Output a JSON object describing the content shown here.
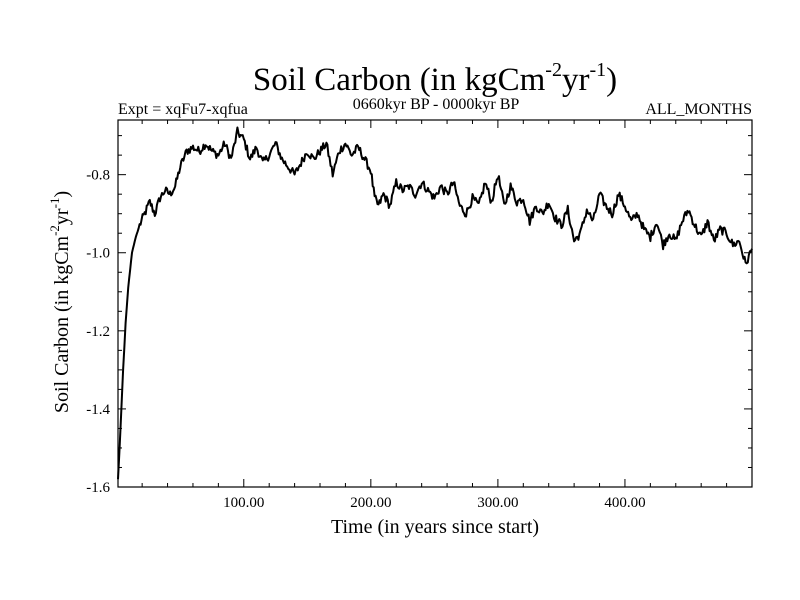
{
  "colors": {
    "line": "#000000",
    "background": "#ffffff",
    "frame": "#000000"
  },
  "chart_data": {
    "type": "line",
    "title_main": "Soil Carbon (in kgCm",
    "title_sup1": "-2",
    "title_mid": "yr",
    "title_sup2": "-1",
    "title_close": ")",
    "left_label": "Expt = xqFu7-xqfua",
    "center_label": "0660kyr BP - 0000kyr BP",
    "right_label": "ALL_MONTHS",
    "xlabel": "Time (in years since start)",
    "ylabel_main": "Soil Carbon (in kgCm",
    "ylabel_sup1": "-2",
    "ylabel_mid": "yr",
    "ylabel_sup2": "-1",
    "ylabel_close": ")",
    "xlim": [
      1,
      500
    ],
    "ylim": [
      -1.6,
      -0.66
    ],
    "x_ticks": [
      100,
      200,
      300,
      400
    ],
    "x_tick_labels": [
      "100.00",
      "200.00",
      "300.00",
      "400.00"
    ],
    "y_ticks": [
      -1.6,
      -1.4,
      -1.2,
      -1.0,
      -0.8
    ],
    "y_tick_labels": [
      "-1.6",
      "-1.4",
      "-1.2",
      "-1.0",
      "-0.8"
    ],
    "series": [
      {
        "name": "Soil Carbon",
        "x": [
          1,
          3,
          5,
          7,
          9,
          12,
          15,
          18,
          22,
          26,
          30,
          34,
          38,
          42,
          46,
          50,
          55,
          60,
          65,
          70,
          75,
          80,
          85,
          90,
          95,
          100,
          105,
          110,
          115,
          120,
          125,
          130,
          135,
          140,
          145,
          150,
          155,
          160,
          165,
          170,
          175,
          180,
          185,
          190,
          195,
          200,
          203,
          206,
          210,
          215,
          220,
          225,
          230,
          235,
          240,
          245,
          250,
          255,
          260,
          265,
          270,
          275,
          280,
          285,
          290,
          295,
          300,
          305,
          310,
          315,
          320,
          325,
          330,
          335,
          340,
          345,
          350,
          355,
          360,
          365,
          370,
          375,
          380,
          385,
          390,
          395,
          400,
          405,
          410,
          415,
          420,
          425,
          430,
          435,
          440,
          445,
          450,
          455,
          460,
          465,
          470,
          475,
          480,
          485,
          490,
          495,
          500
        ],
        "values": [
          -1.58,
          -1.45,
          -1.3,
          -1.18,
          -1.09,
          -1.0,
          -0.96,
          -0.93,
          -0.9,
          -0.87,
          -0.9,
          -0.86,
          -0.84,
          -0.85,
          -0.83,
          -0.78,
          -0.74,
          -0.73,
          -0.74,
          -0.72,
          -0.74,
          -0.75,
          -0.72,
          -0.76,
          -0.69,
          -0.71,
          -0.76,
          -0.73,
          -0.77,
          -0.75,
          -0.72,
          -0.76,
          -0.78,
          -0.8,
          -0.77,
          -0.74,
          -0.76,
          -0.74,
          -0.72,
          -0.8,
          -0.74,
          -0.72,
          -0.75,
          -0.73,
          -0.76,
          -0.79,
          -0.86,
          -0.88,
          -0.85,
          -0.88,
          -0.82,
          -0.84,
          -0.83,
          -0.85,
          -0.82,
          -0.84,
          -0.86,
          -0.83,
          -0.85,
          -0.82,
          -0.88,
          -0.9,
          -0.86,
          -0.88,
          -0.82,
          -0.87,
          -0.8,
          -0.88,
          -0.83,
          -0.87,
          -0.86,
          -0.92,
          -0.88,
          -0.9,
          -0.87,
          -0.91,
          -0.93,
          -0.89,
          -0.97,
          -0.95,
          -0.89,
          -0.92,
          -0.85,
          -0.88,
          -0.9,
          -0.85,
          -0.88,
          -0.92,
          -0.9,
          -0.94,
          -0.96,
          -0.92,
          -0.98,
          -0.95,
          -0.97,
          -0.92,
          -0.89,
          -0.93,
          -0.96,
          -0.92,
          -0.97,
          -0.94,
          -0.95,
          -0.98,
          -0.97,
          -1.03,
          -0.99
        ]
      }
    ]
  }
}
